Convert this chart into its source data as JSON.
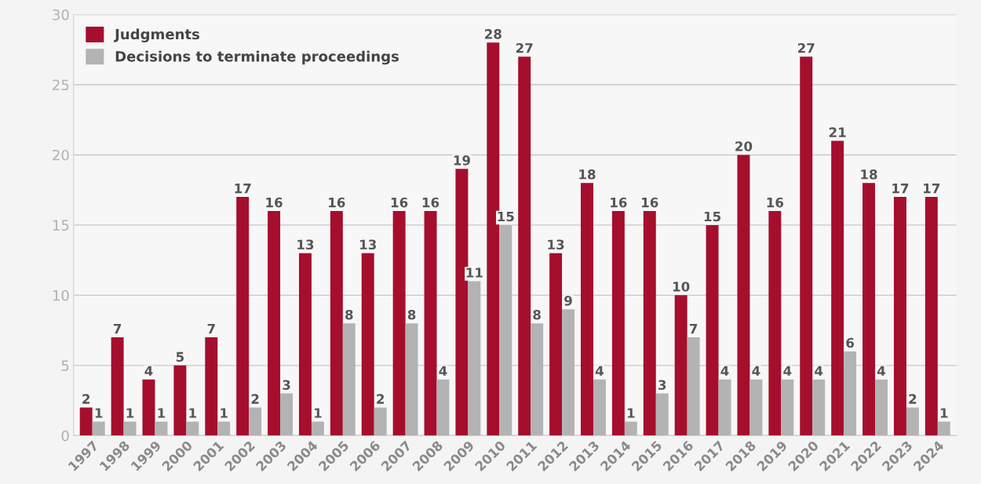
{
  "chart_data": {
    "type": "bar",
    "categories": [
      "1997",
      "1998",
      "1999",
      "2000",
      "2001",
      "2002",
      "2003",
      "2004",
      "2005",
      "2006",
      "2007",
      "2008",
      "2009",
      "2010",
      "2011",
      "2012",
      "2013",
      "2014",
      "2015",
      "2016",
      "2017",
      "2018",
      "2019",
      "2020",
      "2021",
      "2022",
      "2023",
      "2024"
    ],
    "series": [
      {
        "name": "Judgments",
        "color": "#a50e2d",
        "values": [
          2,
          7,
          4,
          5,
          7,
          17,
          16,
          13,
          16,
          13,
          16,
          16,
          19,
          28,
          27,
          13,
          18,
          16,
          16,
          10,
          15,
          20,
          16,
          27,
          21,
          18,
          17,
          17
        ]
      },
      {
        "name": "Decisions to terminate proceedings",
        "color": "#b3b3b3",
        "values": [
          1,
          1,
          1,
          1,
          1,
          2,
          3,
          1,
          8,
          2,
          8,
          4,
          11,
          15,
          8,
          9,
          4,
          1,
          3,
          7,
          4,
          4,
          4,
          4,
          6,
          4,
          2,
          1
        ]
      }
    ],
    "ylim": [
      0,
      30
    ],
    "yticks": [
      0,
      5,
      10,
      15,
      20,
      25,
      30
    ],
    "grid": "y",
    "legend": "top left",
    "data_labels": true
  }
}
